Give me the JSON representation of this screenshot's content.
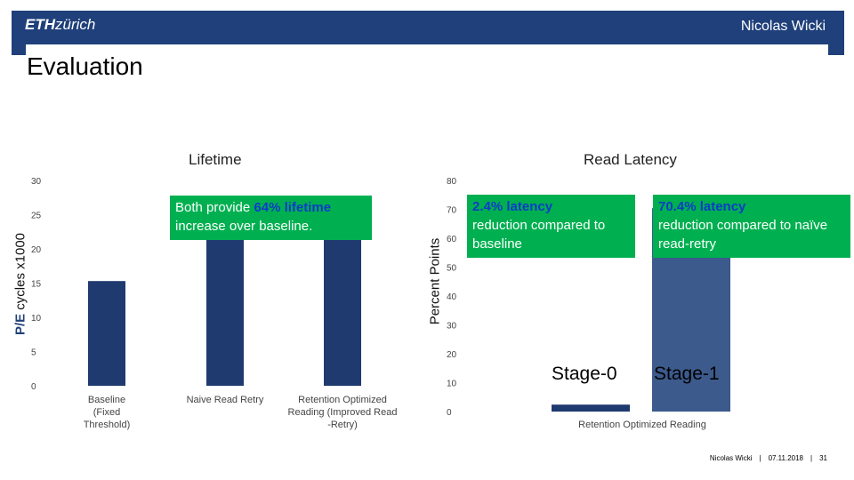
{
  "header": {
    "logo_bold": "ETH",
    "logo_rest": "zürich",
    "author": "Nicolas Wicki"
  },
  "slide_title": "Evaluation",
  "footer": {
    "author": "Nicolas Wicki",
    "separator": "|",
    "date": "07.11.2018",
    "page": "31"
  },
  "colors": {
    "brand": "#1f407a",
    "callout": "#00b050",
    "highlight": "#0b3cc9",
    "bar_dark": "#1f3a6e",
    "bar_light": "#3c5a8c"
  },
  "lifetime": {
    "title": "Lifetime",
    "ylabel_prefix": "P/E",
    "ylabel_suffix": " cycles x1000",
    "callout_pre": "Both provide ",
    "callout_highlight": "64% lifetime",
    "callout_post": " increase over baseline."
  },
  "latency": {
    "title": "Read Latency",
    "ylabel": "Percent Points",
    "callout0_highlight": "2.4% latency",
    "callout0_rest": "reduction compared to baseline",
    "callout1_highlight": "70.4% latency",
    "callout1_rest": "reduction compared to naïve read-retry",
    "stage0": "Stage-0",
    "stage1": "Stage-1"
  },
  "chart_data": [
    {
      "type": "bar",
      "title": "Lifetime",
      "ylabel": "P/E cycles x1000",
      "categories": [
        "Baseline (Fixed Threshold)",
        "Naive Read Retry",
        "Retention Optimized Reading (Improved Read -Retry)"
      ],
      "values": [
        15.3,
        25.1,
        25.1
      ],
      "ylim": [
        0,
        30
      ],
      "yticks": [
        0,
        5,
        10,
        15,
        20,
        25,
        30
      ],
      "grid": false
    },
    {
      "type": "bar",
      "title": "Read Latency",
      "ylabel": "Percent Points",
      "categories": [
        "Retention Optimized Reading"
      ],
      "series": [
        {
          "name": "Stage-0",
          "values": [
            2.4
          ]
        },
        {
          "name": "Stage-1",
          "values": [
            70.4
          ]
        }
      ],
      "ylim": [
        0,
        80
      ],
      "yticks": [
        0,
        10,
        20,
        30,
        40,
        50,
        60,
        70,
        80
      ],
      "grid": false
    }
  ]
}
